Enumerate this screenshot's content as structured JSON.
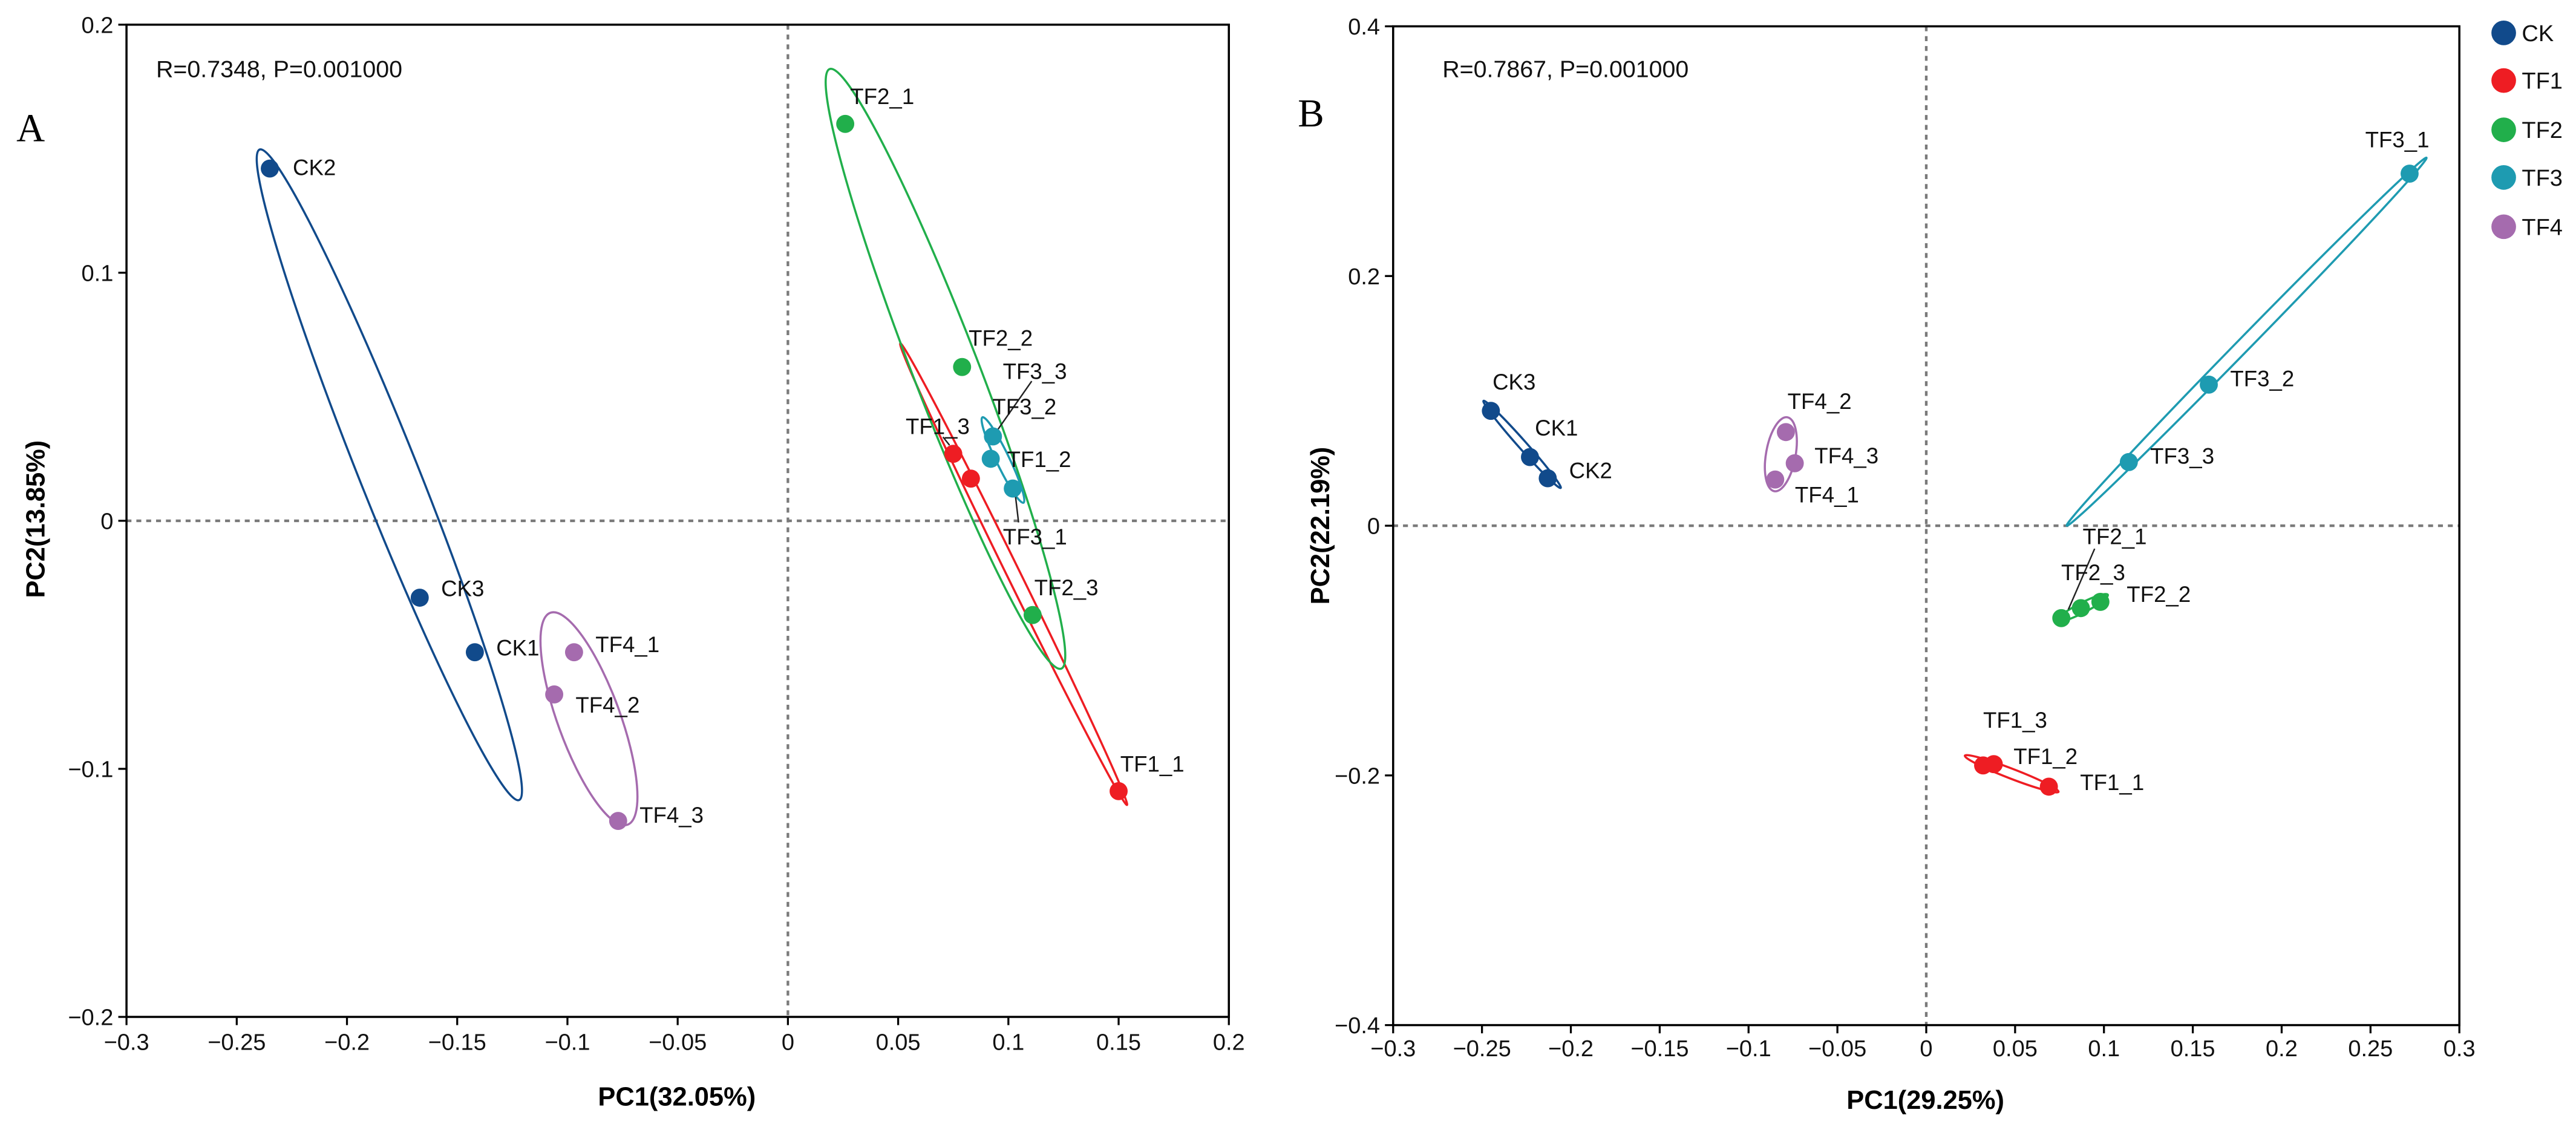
{
  "legend": {
    "items": [
      {
        "name": "CK",
        "color": "#114a8b"
      },
      {
        "name": "TF1",
        "color": "#ee1d23"
      },
      {
        "name": "TF2",
        "color": "#21af4b"
      },
      {
        "name": "TF3",
        "color": "#1e9bb1"
      },
      {
        "name": "TF4",
        "color": "#a56bae"
      }
    ]
  },
  "chart_data": [
    {
      "type": "scatter",
      "panel_label": "A",
      "annotation": "R=0.7348, P=0.001000",
      "xlabel": "PC1(32.05%)",
      "ylabel": "PC2(13.85%)",
      "xlim": [
        -0.3,
        0.2
      ],
      "ylim": [
        -0.2,
        0.2
      ],
      "xticks": [
        {
          "value": -0.3,
          "label": "−0.3"
        },
        {
          "value": -0.25,
          "label": "−0.25"
        },
        {
          "value": -0.2,
          "label": "−0.2"
        },
        {
          "value": -0.15,
          "label": "−0.15"
        },
        {
          "value": -0.1,
          "label": "−0.1"
        },
        {
          "value": -0.05,
          "label": "−0.05"
        },
        {
          "value": 0,
          "label": "0"
        },
        {
          "value": 0.05,
          "label": "0.05"
        },
        {
          "value": 0.1,
          "label": "0.1"
        },
        {
          "value": 0.15,
          "label": "0.15"
        },
        {
          "value": 0.2,
          "label": "0.2"
        }
      ],
      "yticks": [
        {
          "value": 0.2,
          "label": "0.2"
        },
        {
          "value": 0.1,
          "label": "0.1"
        },
        {
          "value": 0,
          "label": "0"
        },
        {
          "value": -0.1,
          "label": "−0.1"
        },
        {
          "value": -0.2,
          "label": "−0.2"
        }
      ],
      "reference_lines": {
        "x": 0,
        "y": 0
      },
      "series": [
        {
          "name": "CK",
          "color": "#114a8b",
          "points": [
            {
              "label": "CK1",
              "x": -0.142,
              "y": -0.053
            },
            {
              "label": "CK2",
              "x": -0.235,
              "y": 0.142
            },
            {
              "label": "CK3",
              "x": -0.167,
              "y": -0.031
            }
          ]
        },
        {
          "name": "TF1",
          "color": "#ee1d23",
          "points": [
            {
              "label": "TF1_1",
              "x": 0.15,
              "y": -0.109
            },
            {
              "label": "TF1_2",
              "x": 0.083,
              "y": 0.017
            },
            {
              "label": "TF1_3",
              "x": 0.075,
              "y": 0.027
            }
          ]
        },
        {
          "name": "TF2",
          "color": "#21af4b",
          "points": [
            {
              "label": "TF2_1",
              "x": 0.026,
              "y": 0.16
            },
            {
              "label": "TF2_2",
              "x": 0.079,
              "y": 0.062
            },
            {
              "label": "TF2_3",
              "x": 0.111,
              "y": -0.038
            }
          ]
        },
        {
          "name": "TF3",
          "color": "#1e9bb1",
          "points": [
            {
              "label": "TF3_1",
              "x": 0.102,
              "y": 0.013
            },
            {
              "label": "TF3_2",
              "x": 0.092,
              "y": 0.025
            },
            {
              "label": "TF3_3",
              "x": 0.093,
              "y": 0.034
            }
          ]
        },
        {
          "name": "TF4",
          "color": "#a56bae",
          "points": [
            {
              "label": "TF4_1",
              "x": -0.097,
              "y": -0.053
            },
            {
              "label": "TF4_2",
              "x": -0.106,
              "y": -0.07
            },
            {
              "label": "TF4_3",
              "x": -0.077,
              "y": -0.121
            }
          ]
        }
      ]
    },
    {
      "type": "scatter",
      "panel_label": "B",
      "annotation": "R=0.7867, P=0.001000",
      "xlabel": "PC1(29.25%)",
      "ylabel": "PC2(22.19%)",
      "xlim": [
        -0.3,
        0.3
      ],
      "ylim": [
        -0.4,
        0.4
      ],
      "xticks": [
        {
          "value": -0.3,
          "label": "−0.3"
        },
        {
          "value": -0.25,
          "label": "−0.25"
        },
        {
          "value": -0.2,
          "label": "−0.2"
        },
        {
          "value": -0.15,
          "label": "−0.15"
        },
        {
          "value": -0.1,
          "label": "−0.1"
        },
        {
          "value": -0.05,
          "label": "−0.05"
        },
        {
          "value": 0,
          "label": "0"
        },
        {
          "value": 0.05,
          "label": "0.05"
        },
        {
          "value": 0.1,
          "label": "0.1"
        },
        {
          "value": 0.15,
          "label": "0.15"
        },
        {
          "value": 0.2,
          "label": "0.2"
        },
        {
          "value": 0.25,
          "label": "0.25"
        },
        {
          "value": 0.3,
          "label": "0.3"
        }
      ],
      "yticks": [
        {
          "value": 0.4,
          "label": "0.4"
        },
        {
          "value": 0.2,
          "label": "0.2"
        },
        {
          "value": 0,
          "label": "0"
        },
        {
          "value": -0.2,
          "label": "−0.2"
        },
        {
          "value": -0.4,
          "label": "−0.4"
        }
      ],
      "reference_lines": {
        "x": 0,
        "y": 0
      },
      "series": [
        {
          "name": "CK",
          "color": "#114a8b",
          "points": [
            {
              "label": "CK1",
              "x": -0.223,
              "y": 0.055
            },
            {
              "label": "CK2",
              "x": -0.213,
              "y": 0.038
            },
            {
              "label": "CK3",
              "x": -0.245,
              "y": 0.092
            }
          ]
        },
        {
          "name": "TF1",
          "color": "#ee1d23",
          "points": [
            {
              "label": "TF1_1",
              "x": 0.069,
              "y": -0.209
            },
            {
              "label": "TF1_2",
              "x": 0.038,
              "y": -0.191
            },
            {
              "label": "TF1_3",
              "x": 0.032,
              "y": -0.192
            }
          ]
        },
        {
          "name": "TF2",
          "color": "#21af4b",
          "points": [
            {
              "label": "TF2_1",
              "x": 0.076,
              "y": -0.074
            },
            {
              "label": "TF2_2",
              "x": 0.098,
              "y": -0.061
            },
            {
              "label": "TF2_3",
              "x": 0.087,
              "y": -0.066
            }
          ]
        },
        {
          "name": "TF3",
          "color": "#1e9bb1",
          "points": [
            {
              "label": "TF3_1",
              "x": 0.272,
              "y": 0.282
            },
            {
              "label": "TF3_2",
              "x": 0.159,
              "y": 0.113
            },
            {
              "label": "TF3_3",
              "x": 0.114,
              "y": 0.051
            }
          ]
        },
        {
          "name": "TF4",
          "color": "#a56bae",
          "points": [
            {
              "label": "TF4_1",
              "x": -0.085,
              "y": 0.037
            },
            {
              "label": "TF4_2",
              "x": -0.079,
              "y": 0.075
            },
            {
              "label": "TF4_3",
              "x": -0.074,
              "y": 0.05
            }
          ]
        }
      ]
    }
  ]
}
